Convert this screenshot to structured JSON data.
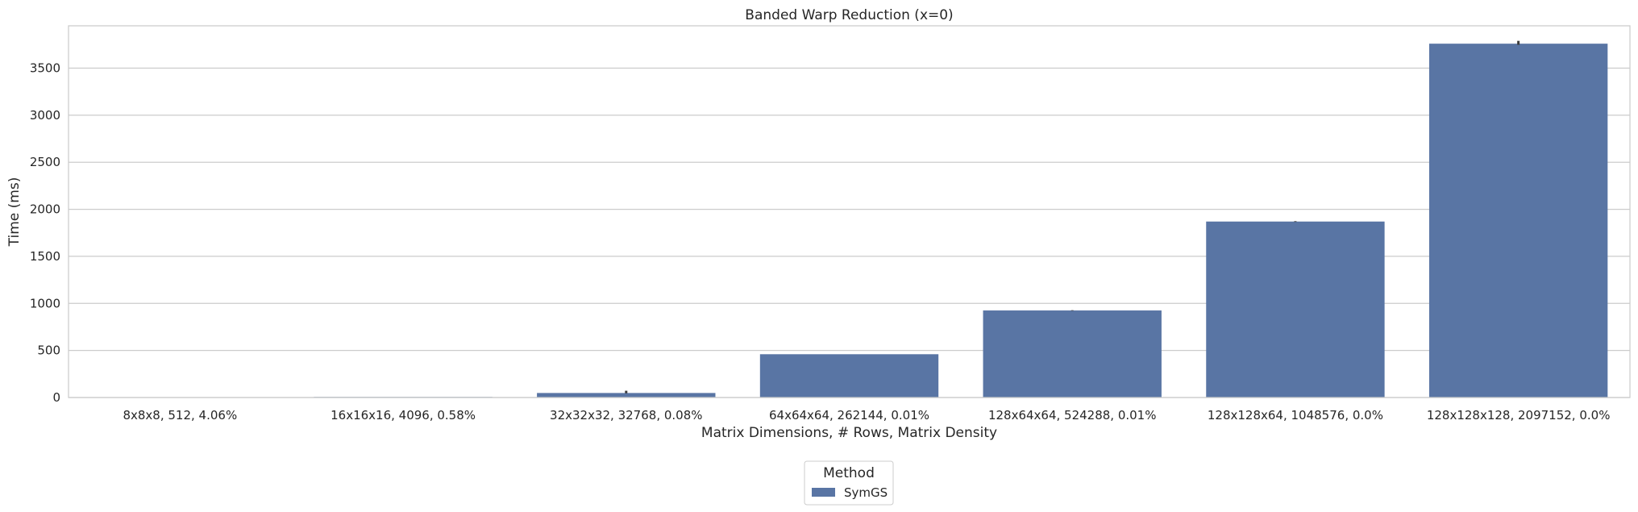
{
  "chart_data": {
    "type": "bar",
    "title": "Banded Warp Reduction (x=0)",
    "xlabel": "Matrix Dimensions, # Rows, Matrix Density",
    "ylabel": "Time (ms)",
    "categories": [
      "8x8x8, 512, 4.06%",
      "16x16x16, 4096, 0.58%",
      "32x32x32, 32768, 0.08%",
      "64x64x64, 262144, 0.01%",
      "128x64x64, 524288, 0.01%",
      "128x128x64, 1048576, 0.0%",
      "128x128x128, 2097152, 0.0%"
    ],
    "series": [
      {
        "name": "SymGS",
        "color": "#5975a4",
        "values": [
          1,
          6,
          48,
          460,
          925,
          1870,
          3760
        ],
        "error_low": [
          1,
          6,
          45,
          458,
          922,
          1866,
          3748
        ],
        "error_high": [
          1,
          6,
          72,
          462,
          928,
          1874,
          3790
        ]
      }
    ],
    "ylim": [
      0,
      3950
    ],
    "yticks": [
      0,
      500,
      1000,
      1500,
      2000,
      2500,
      3000,
      3500
    ],
    "grid": true,
    "legend": {
      "title": "Method",
      "placement": "bottom-center"
    }
  }
}
